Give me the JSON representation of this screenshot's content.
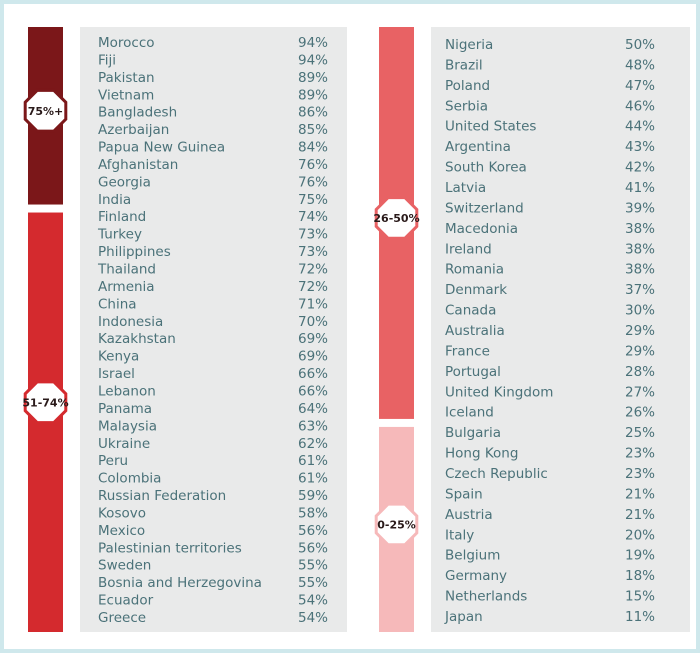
{
  "columns": [
    {
      "groups": [
        {
          "label": "75%+",
          "color": "#7b1719",
          "rows": [
            [
              "Morocco",
              "94%"
            ],
            [
              "Fiji",
              "94%"
            ],
            [
              "Pakistan",
              "89%"
            ],
            [
              "Vietnam",
              "89%"
            ],
            [
              "Bangladesh",
              "86%"
            ],
            [
              "Azerbaijan",
              "85%"
            ],
            [
              "Papua New Guinea",
              "84%"
            ],
            [
              "Afghanistan",
              "76%"
            ],
            [
              "Georgia",
              "76%"
            ],
            [
              "India",
              "75%"
            ]
          ]
        },
        {
          "label": "51-74%",
          "color": "#d42a2e",
          "rows": [
            [
              "Finland",
              "74%"
            ],
            [
              "Turkey",
              "73%"
            ],
            [
              "Philippines",
              "73%"
            ],
            [
              "Thailand",
              "72%"
            ],
            [
              "Armenia",
              "72%"
            ],
            [
              "China",
              "71%"
            ],
            [
              "Indonesia",
              "70%"
            ],
            [
              "Kazakhstan",
              "69%"
            ],
            [
              "Kenya",
              "69%"
            ],
            [
              "Israel",
              "66%"
            ],
            [
              "Lebanon",
              "66%"
            ],
            [
              "Panama",
              "64%"
            ],
            [
              "Malaysia",
              "63%"
            ],
            [
              "Ukraine",
              "62%"
            ],
            [
              "Peru",
              "61%"
            ],
            [
              "Colombia",
              "61%"
            ],
            [
              "Russian Federation",
              "59%"
            ],
            [
              "Kosovo",
              "58%"
            ],
            [
              "Mexico",
              "56%"
            ],
            [
              "Palestinian territories",
              "56%"
            ],
            [
              "Sweden",
              "55%"
            ],
            [
              "Bosnia and Herzegovina",
              "55%"
            ],
            [
              "Ecuador",
              "54%"
            ],
            [
              "Greece",
              "54%"
            ]
          ]
        }
      ]
    },
    {
      "groups": [
        {
          "label": "26-50%",
          "color": "#e86264",
          "rows": [
            [
              "Nigeria",
              "50%"
            ],
            [
              "Brazil",
              "48%"
            ],
            [
              "Poland",
              "47%"
            ],
            [
              "Serbia",
              "46%"
            ],
            [
              "United States",
              "44%"
            ],
            [
              "Argentina",
              "43%"
            ],
            [
              "South Korea",
              "42%"
            ],
            [
              "Latvia",
              "41%"
            ],
            [
              "Switzerland",
              "39%"
            ],
            [
              "Macedonia",
              "38%"
            ],
            [
              "Ireland",
              "38%"
            ],
            [
              "Romania",
              "38%"
            ],
            [
              "Denmark",
              "37%"
            ],
            [
              "Canada",
              "30%"
            ],
            [
              "Australia",
              "29%"
            ],
            [
              "France",
              "29%"
            ],
            [
              "Portugal",
              "28%"
            ],
            [
              "United Kingdom",
              "27%"
            ],
            [
              "Iceland",
              "26%"
            ]
          ]
        },
        {
          "label": "0-25%",
          "color": "#f6b9ba",
          "rows": [
            [
              "Bulgaria",
              "25%"
            ],
            [
              "Hong Kong",
              "23%"
            ],
            [
              "Czech Republic",
              "23%"
            ],
            [
              "Spain",
              "21%"
            ],
            [
              "Austria",
              "21%"
            ],
            [
              "Italy",
              "20%"
            ],
            [
              "Belgium",
              "19%"
            ],
            [
              "Germany",
              "18%"
            ],
            [
              "Netherlands",
              "15%"
            ],
            [
              "Japan",
              "11%"
            ]
          ]
        }
      ]
    }
  ]
}
